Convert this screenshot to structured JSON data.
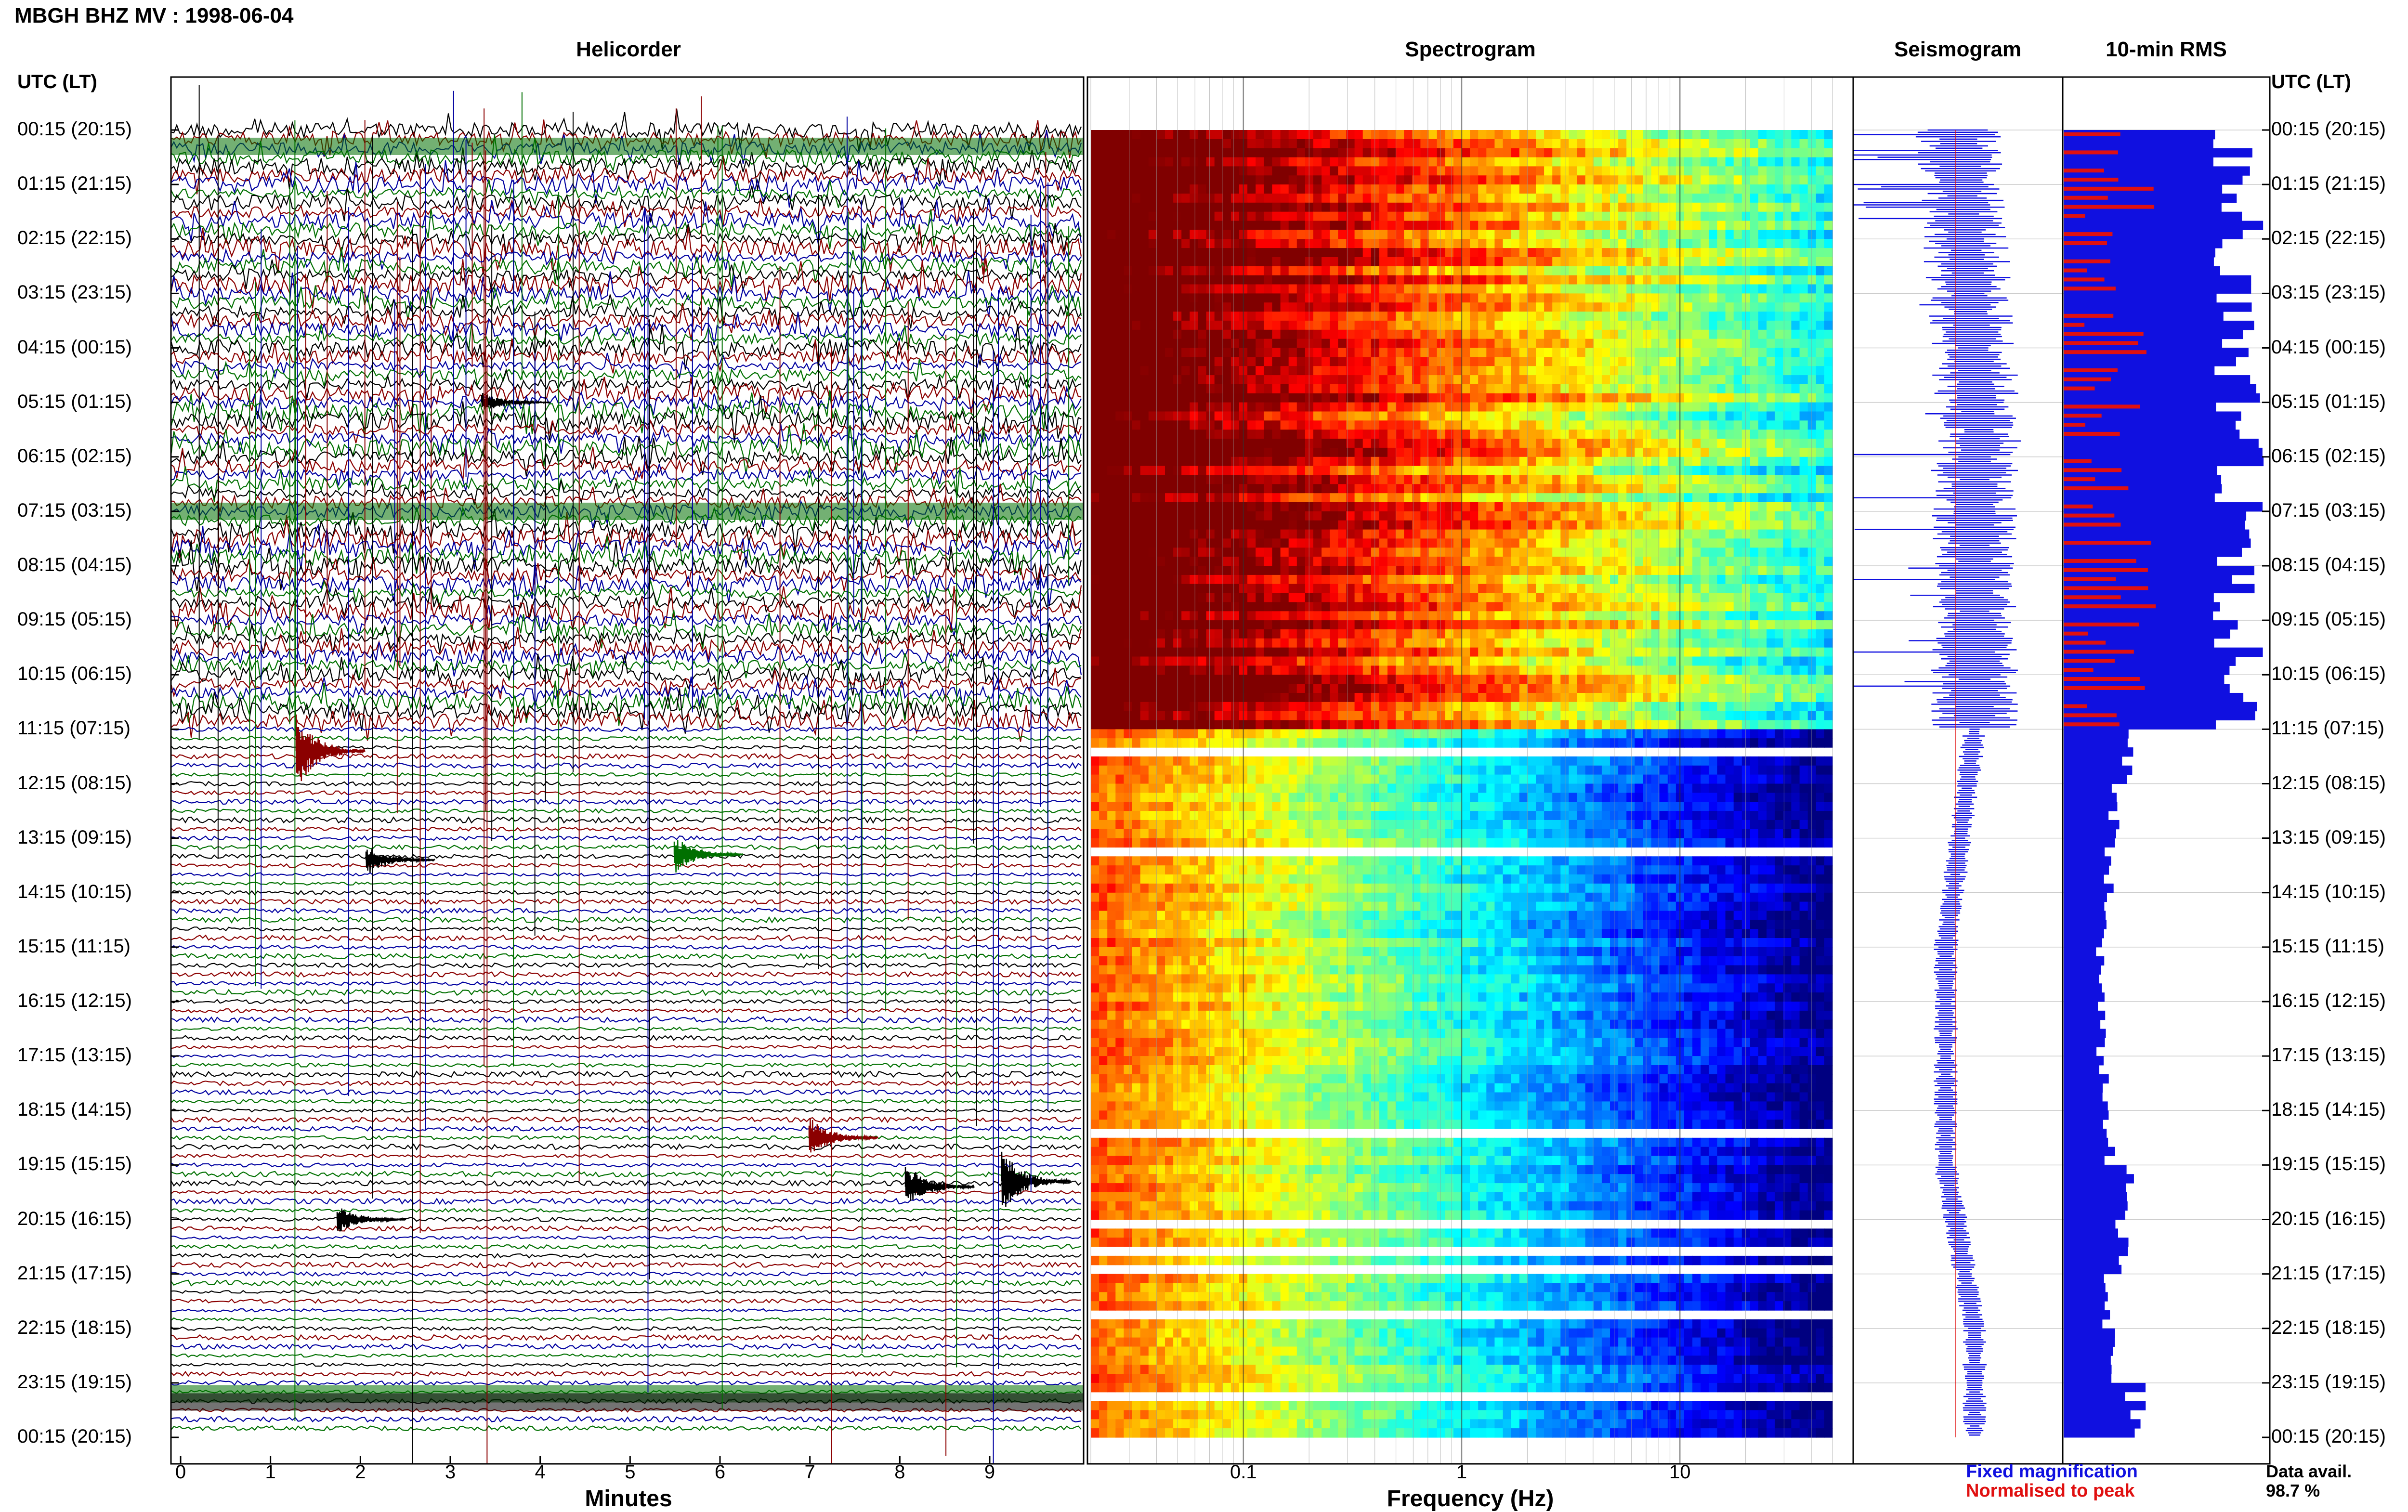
{
  "title": "MBGH BHZ MV : 1998-06-04",
  "panels": {
    "helicorder": "Helicorder",
    "spectrogram": "Spectrogram",
    "seismogram": "Seismogram",
    "rms": "10-min RMS"
  },
  "axis": {
    "utc_header_left": "UTC (LT)",
    "utc_header_right": "UTC (LT)",
    "minutes_label": "Minutes",
    "frequency_label": "Frequency (Hz)"
  },
  "legend": {
    "fixed": "Fixed magnification",
    "normalised": "Normalised to peak",
    "data_avail_label": "Data avail.",
    "data_avail_value": "98.7 %"
  },
  "colors": {
    "fixed": "#1010e0",
    "normalised": "#e01010",
    "trace_colors": [
      "#000000",
      "#8b0000",
      "#0000a0",
      "#007000"
    ]
  },
  "chart_data": {
    "type": "heatmap",
    "time_labels": [
      "00:15 (20:15)",
      "01:15 (21:15)",
      "02:15 (22:15)",
      "03:15 (23:15)",
      "04:15 (00:15)",
      "05:15 (01:15)",
      "06:15 (02:15)",
      "07:15 (03:15)",
      "08:15 (04:15)",
      "09:15 (05:15)",
      "10:15 (06:15)",
      "11:15 (07:15)",
      "12:15 (08:15)",
      "13:15 (09:15)",
      "14:15 (10:15)",
      "15:15 (11:15)",
      "16:15 (12:15)",
      "17:15 (13:15)",
      "18:15 (14:15)",
      "19:15 (15:15)",
      "20:15 (16:15)",
      "21:15 (17:15)",
      "22:15 (18:15)",
      "23:15 (19:15)",
      "00:15 (20:15)"
    ],
    "minute_ticks": [
      "0",
      "1",
      "2",
      "3",
      "4",
      "5",
      "6",
      "7",
      "8",
      "9"
    ],
    "frequency_ticks": [
      "0.1",
      "1",
      "10"
    ],
    "frequency_range_hz": [
      0.02,
      50
    ],
    "minutes_range": [
      0,
      10
    ],
    "rows": 144,
    "spectrogram_regimes": [
      {
        "from_hour": 0,
        "to_hour": 11,
        "state": "high energy, broadband"
      },
      {
        "from_hour": 11,
        "to_hour": 24,
        "state": "quieter, low frequency dominant"
      }
    ],
    "rms_fixed_by_hour": [
      0.85,
      0.85,
      0.85,
      0.85,
      0.85,
      0.85,
      0.85,
      0.85,
      0.85,
      0.85,
      0.85,
      0.3,
      0.24,
      0.22,
      0.2,
      0.18,
      0.18,
      0.2,
      0.22,
      0.3,
      0.28,
      0.2,
      0.25,
      0.35
    ]
  }
}
